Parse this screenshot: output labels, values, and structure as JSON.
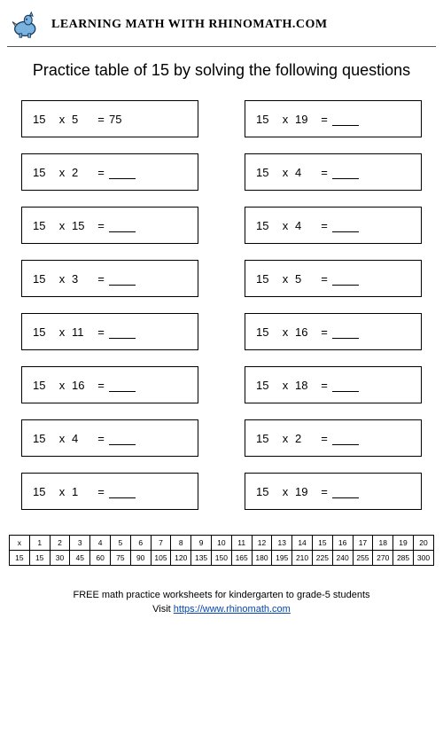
{
  "header": {
    "brand": "LEARNING MATH WITH RHINOMATH.COM"
  },
  "title": "Practice table of 15 by solving the following questions",
  "questions": {
    "left": [
      {
        "a": "15",
        "op": "x",
        "b": "5",
        "eq": "=",
        "ans": "75"
      },
      {
        "a": "15",
        "op": "x",
        "b": "2",
        "eq": "=",
        "ans": ""
      },
      {
        "a": "15",
        "op": "x",
        "b": "15",
        "eq": "=",
        "ans": ""
      },
      {
        "a": "15",
        "op": "x",
        "b": "3",
        "eq": "=",
        "ans": ""
      },
      {
        "a": "15",
        "op": "x",
        "b": "11",
        "eq": "=",
        "ans": ""
      },
      {
        "a": "15",
        "op": "x",
        "b": "16",
        "eq": "=",
        "ans": ""
      },
      {
        "a": "15",
        "op": "x",
        "b": "4",
        "eq": "=",
        "ans": ""
      },
      {
        "a": "15",
        "op": "x",
        "b": "1",
        "eq": "=",
        "ans": ""
      }
    ],
    "right": [
      {
        "a": "15",
        "op": "x",
        "b": "19",
        "eq": "=",
        "ans": ""
      },
      {
        "a": "15",
        "op": "x",
        "b": "4",
        "eq": "=",
        "ans": ""
      },
      {
        "a": "15",
        "op": "x",
        "b": "4",
        "eq": "=",
        "ans": ""
      },
      {
        "a": "15",
        "op": "x",
        "b": "5",
        "eq": "=",
        "ans": ""
      },
      {
        "a": "15",
        "op": "x",
        "b": "16",
        "eq": "=",
        "ans": ""
      },
      {
        "a": "15",
        "op": "x",
        "b": "18",
        "eq": "=",
        "ans": ""
      },
      {
        "a": "15",
        "op": "x",
        "b": "2",
        "eq": "=",
        "ans": ""
      },
      {
        "a": "15",
        "op": "x",
        "b": "19",
        "eq": "=",
        "ans": ""
      }
    ]
  },
  "reference": {
    "headers": [
      "x",
      "1",
      "2",
      "3",
      "4",
      "5",
      "6",
      "7",
      "8",
      "9",
      "10",
      "11",
      "12",
      "13",
      "14",
      "15",
      "16",
      "17",
      "18",
      "19",
      "20"
    ],
    "values": [
      "15",
      "15",
      "30",
      "45",
      "60",
      "75",
      "90",
      "105",
      "120",
      "135",
      "150",
      "165",
      "180",
      "195",
      "210",
      "225",
      "240",
      "255",
      "270",
      "285",
      "300"
    ]
  },
  "footer": {
    "line1": "FREE math practice worksheets for kindergarten to grade-5 students",
    "visit_prefix": "Visit ",
    "link_text": "https://www.rhinomath.com"
  }
}
